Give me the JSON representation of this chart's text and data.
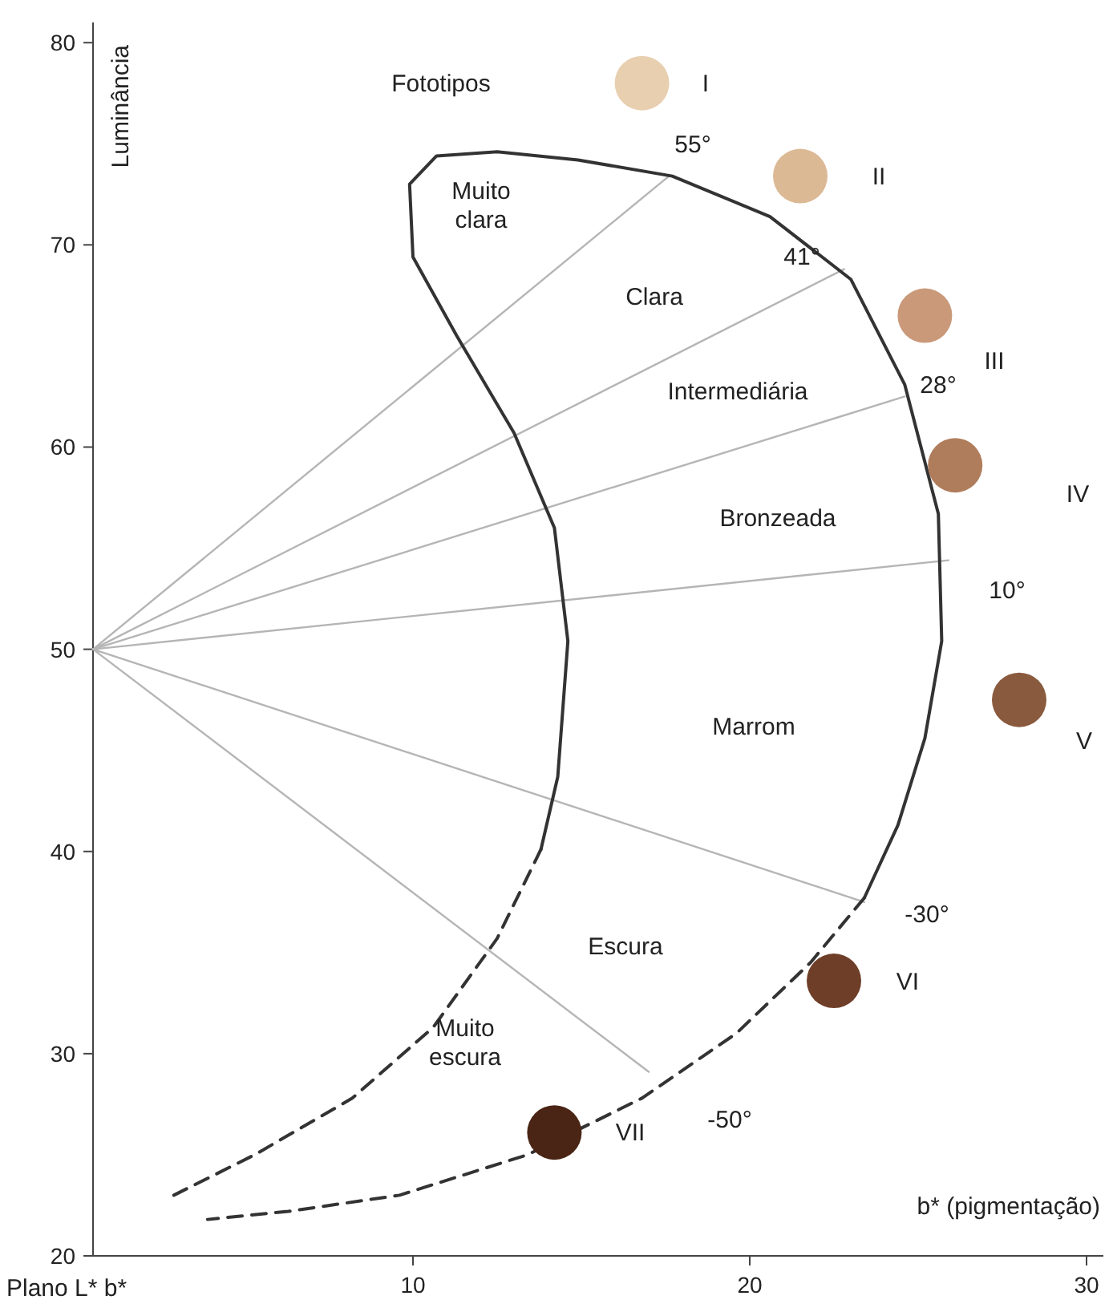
{
  "chart_data": {
    "type": "line",
    "xlabel": "b* (pigmentação)",
    "ylabel": "Luminância",
    "xlim": [
      0.5,
      30.5
    ],
    "ylim": [
      20,
      81
    ],
    "xticks": [
      10,
      20,
      30
    ],
    "yticks": [
      20,
      30,
      40,
      50,
      60,
      70,
      80
    ],
    "grid": false,
    "series": [
      {
        "type": "line",
        "color": "#b5b5b5",
        "line_style": "solid",
        "x": [
          0.5,
          17.6
        ],
        "values": [
          50,
          73.4
        ]
      },
      {
        "type": "line",
        "color": "#b5b5b5",
        "line_style": "solid",
        "x": [
          0.5,
          22.8
        ],
        "values": [
          50,
          68.8
        ]
      },
      {
        "type": "line",
        "color": "#b5b5b5",
        "line_style": "solid",
        "x": [
          0.5,
          24.6
        ],
        "values": [
          50,
          62.5
        ]
      },
      {
        "type": "line",
        "color": "#b5b5b5",
        "line_style": "solid",
        "x": [
          0.5,
          25.9
        ],
        "values": [
          50,
          54.4
        ]
      },
      {
        "type": "line",
        "color": "#b5b5b5",
        "line_style": "solid",
        "x": [
          0.5,
          23.4
        ],
        "values": [
          50,
          37.5
        ]
      },
      {
        "type": "line",
        "color": "#b5b5b5",
        "line_style": "solid",
        "x": [
          0.5,
          17.0
        ],
        "values": [
          50,
          29.1
        ]
      },
      {
        "color": "#333333",
        "line_style": "solid",
        "x": [
          13.8,
          14.3,
          14.6,
          14.2,
          13.0,
          11.3,
          10.0,
          9.9,
          10.7,
          12.5,
          14.9,
          17.7,
          20.6,
          23.0,
          24.6,
          25.6,
          25.7,
          25.2,
          24.4,
          23.4
        ],
        "values": [
          40.1,
          43.7,
          50.4,
          56.0,
          60.7,
          65.5,
          69.4,
          73.0,
          74.4,
          74.6,
          74.2,
          73.4,
          71.4,
          68.3,
          63.1,
          56.7,
          50.4,
          45.6,
          41.3,
          37.7
        ]
      },
      {
        "type": "line",
        "color": "#333333",
        "line_style": "dashed",
        "x": [
          23.4,
          21.8,
          19.6,
          16.8,
          13.4,
          9.6,
          6.3,
          3.9
        ],
        "values": [
          37.7,
          34.5,
          31.0,
          27.8,
          25.0,
          23.0,
          22.2,
          21.8
        ]
      },
      {
        "type": "line",
        "color": "#333333",
        "line_style": "dashed",
        "x": [
          13.8,
          12.5,
          10.6,
          8.2,
          5.3,
          2.9
        ],
        "values": [
          40.1,
          35.7,
          31.3,
          27.8,
          25.0,
          23.0
        ]
      },
      {
        "type": "scatter",
        "marker": "circle",
        "x": [
          16.8,
          21.5,
          25.2,
          26.1,
          28.0,
          22.5,
          14.2
        ],
        "values": [
          78.0,
          73.4,
          66.5,
          59.1,
          47.5,
          33.6,
          26.1
        ],
        "colors": [
          "#e8cfb0",
          "#dcb995",
          "#c9997a",
          "#b07d5c",
          "#8a5a3e",
          "#6e3e28",
          "#4a2414"
        ]
      }
    ],
    "annotations": [
      "Plano L* b*",
      "Fototipos",
      "I",
      "II",
      "III",
      "IV",
      "V",
      "VI",
      "VII",
      "55°",
      "41°",
      "28°",
      "10°",
      "-30°",
      "-50°",
      "Muito\nclara",
      "Clara",
      "Intermediária",
      "Bronzeada",
      "Marrom",
      "Escura",
      "Muito\nescura"
    ]
  }
}
